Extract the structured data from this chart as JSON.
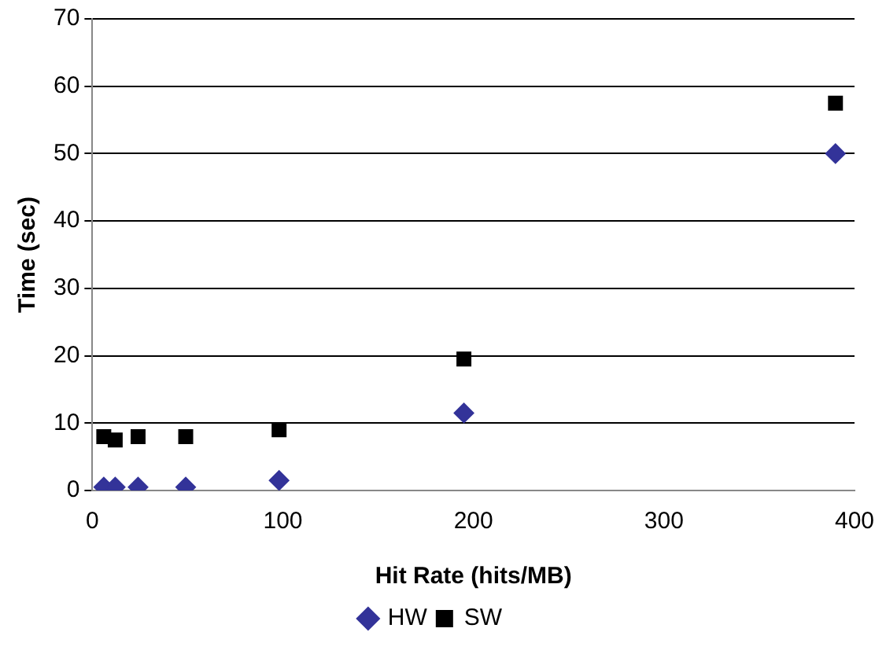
{
  "chart_data": {
    "type": "scatter",
    "xlabel": "Hit Rate (hits/MB)",
    "ylabel": "Time (sec)",
    "xlim": [
      0,
      400
    ],
    "xticks": [
      0,
      100,
      200,
      300,
      400
    ],
    "ylim": [
      0,
      70
    ],
    "yticks": [
      0,
      10,
      20,
      30,
      40,
      50,
      60,
      70
    ],
    "grid": "y",
    "legend": "bottom",
    "series": [
      {
        "name": "HW",
        "color": "#333399",
        "marker": "diamond",
        "x": [
          6,
          12,
          24,
          49,
          98,
          195,
          390
        ],
        "values": [
          0.5,
          0.5,
          0.5,
          0.5,
          1.5,
          11.5,
          50
        ]
      },
      {
        "name": "SW",
        "color": "#000000",
        "marker": "square",
        "x": [
          6,
          12,
          24,
          49,
          98,
          195,
          390
        ],
        "values": [
          8,
          7.5,
          8,
          8,
          9,
          19.5,
          57.5
        ]
      }
    ]
  }
}
